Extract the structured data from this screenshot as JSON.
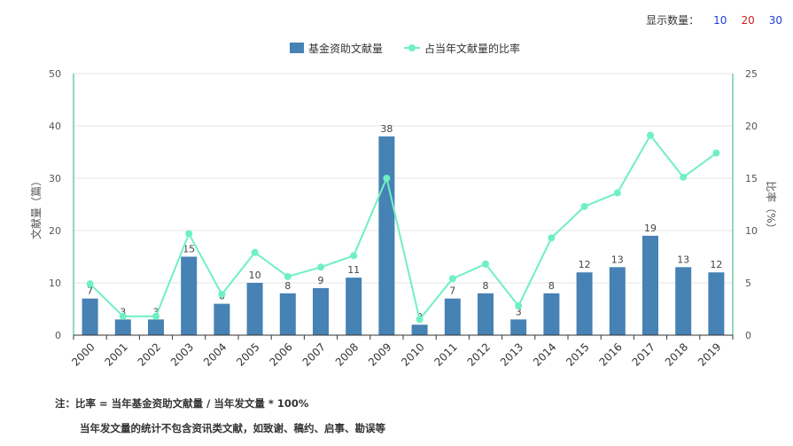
{
  "topbar": {
    "label": "显示数量：",
    "options": [
      {
        "label": "10",
        "color": "#1f3fd1"
      },
      {
        "label": "20",
        "color": "#d11f1f"
      },
      {
        "label": "30",
        "color": "#1f3fd1"
      }
    ]
  },
  "chart_data": {
    "type": "bar+line",
    "categories": [
      "2000",
      "2001",
      "2002",
      "2003",
      "2004",
      "2005",
      "2006",
      "2007",
      "2008",
      "2009",
      "2010",
      "2011",
      "2012",
      "2013",
      "2014",
      "2015",
      "2016",
      "2017",
      "2018",
      "2019"
    ],
    "series": [
      {
        "name": "基金资助文献量",
        "type": "bar",
        "axis": "left",
        "color": "#4682b4",
        "values": [
          7,
          3,
          3,
          15,
          6,
          10,
          8,
          9,
          11,
          38,
          2,
          7,
          8,
          3,
          8,
          12,
          13,
          19,
          13,
          12
        ]
      },
      {
        "name": "占当年文献量的比率",
        "type": "line",
        "axis": "right",
        "color": "#6ff0c2",
        "values": [
          4.9,
          1.8,
          1.8,
          9.7,
          3.9,
          7.9,
          5.6,
          6.5,
          7.6,
          15.0,
          1.5,
          5.4,
          6.8,
          2.8,
          9.3,
          12.3,
          13.6,
          19.1,
          15.1,
          17.4
        ]
      }
    ],
    "yleft": {
      "label": "文献量（篇）",
      "lim": [
        0,
        50
      ],
      "ticks": [
        0,
        10,
        20,
        30,
        40,
        50
      ]
    },
    "yright": {
      "label": "比率（%）",
      "lim": [
        0,
        25
      ],
      "ticks": [
        0,
        5,
        10,
        15,
        20,
        25
      ]
    },
    "grid": true,
    "legend": "top-center"
  },
  "notes": {
    "line1": "注：比率 = 当年基金资助文献量 / 当年发文量 * 100%",
    "line2": "当年发文量的统计不包含资讯类文献，如致谢、稿约、启事、勘误等"
  }
}
